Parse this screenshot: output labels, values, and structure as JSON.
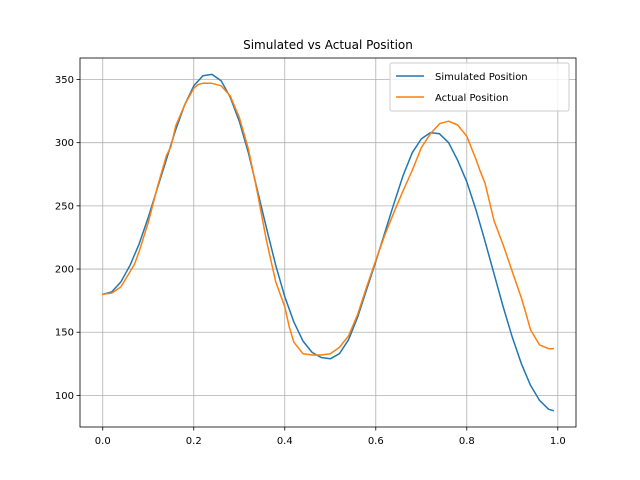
{
  "chart_data": {
    "type": "line",
    "title": "Simulated vs Actual Position",
    "xlabel": "",
    "ylabel": "",
    "xlim": [
      -0.05,
      1.04
    ],
    "ylim": [
      75,
      367
    ],
    "xticks": [
      0.0,
      0.2,
      0.4,
      0.6,
      0.8,
      1.0
    ],
    "xtick_labels": [
      "0.0",
      "0.2",
      "0.4",
      "0.6",
      "0.8",
      "1.0"
    ],
    "yticks": [
      100,
      150,
      200,
      250,
      300,
      350
    ],
    "ytick_labels": [
      "100",
      "150",
      "200",
      "250",
      "300",
      "350"
    ],
    "grid": true,
    "legend_position": "top-right",
    "series": [
      {
        "name": "Simulated Position",
        "color": "#1f77b4",
        "x": [
          0.0,
          0.02,
          0.04,
          0.06,
          0.08,
          0.1,
          0.12,
          0.14,
          0.16,
          0.18,
          0.2,
          0.22,
          0.24,
          0.26,
          0.28,
          0.3,
          0.32,
          0.34,
          0.36,
          0.38,
          0.4,
          0.42,
          0.44,
          0.46,
          0.48,
          0.5,
          0.52,
          0.54,
          0.56,
          0.58,
          0.6,
          0.62,
          0.64,
          0.66,
          0.68,
          0.7,
          0.72,
          0.74,
          0.76,
          0.78,
          0.8,
          0.82,
          0.84,
          0.86,
          0.88,
          0.9,
          0.92,
          0.94,
          0.96,
          0.98,
          0.99
        ],
        "y": [
          180,
          182,
          190,
          203,
          220,
          241,
          264,
          287,
          310,
          330,
          345,
          353,
          354,
          349,
          336,
          317,
          292,
          262,
          232,
          203,
          178,
          158,
          143,
          134,
          130,
          129,
          133,
          144,
          162,
          184,
          206,
          229,
          252,
          274,
          292,
          303,
          308,
          307,
          300,
          286,
          269,
          247,
          222,
          196,
          170,
          146,
          125,
          108,
          96,
          89,
          88
        ]
      },
      {
        "name": "Actual Position",
        "color": "#ff7f0e",
        "x": [
          0.0,
          0.02,
          0.04,
          0.06,
          0.07,
          0.08,
          0.1,
          0.12,
          0.14,
          0.15,
          0.16,
          0.18,
          0.2,
          0.21,
          0.22,
          0.24,
          0.26,
          0.28,
          0.3,
          0.32,
          0.34,
          0.36,
          0.38,
          0.4,
          0.41,
          0.42,
          0.44,
          0.46,
          0.48,
          0.5,
          0.52,
          0.54,
          0.56,
          0.58,
          0.6,
          0.62,
          0.64,
          0.66,
          0.68,
          0.7,
          0.72,
          0.74,
          0.76,
          0.78,
          0.8,
          0.82,
          0.83,
          0.84,
          0.86,
          0.88,
          0.9,
          0.92,
          0.93,
          0.94,
          0.96,
          0.98,
          0.99
        ],
        "y": [
          180,
          181,
          186,
          198,
          204,
          214,
          237,
          265,
          290,
          297,
          313,
          330,
          343,
          346,
          347,
          347,
          345,
          337,
          320,
          295,
          260,
          222,
          190,
          170,
          154,
          142,
          133,
          132,
          132,
          133,
          138,
          147,
          164,
          186,
          207,
          227,
          245,
          262,
          278,
          296,
          307,
          315,
          317,
          314,
          305,
          287,
          277,
          268,
          238,
          219,
          198,
          177,
          165,
          152,
          140,
          137,
          137
        ]
      }
    ]
  }
}
